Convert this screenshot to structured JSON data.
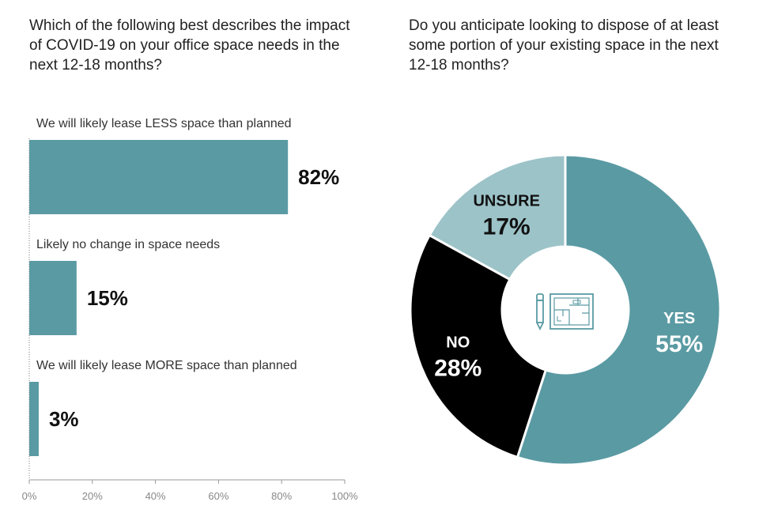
{
  "chart_data": [
    {
      "type": "bar",
      "orientation": "horizontal",
      "title": "Which of the following best describes the impact of COVID-19 on your office space needs in the next 12-18 months?",
      "categories": [
        "We will likely lease LESS space than planned",
        "Likely no change in space needs",
        "We will likely lease MORE space than planned"
      ],
      "values": [
        82,
        15,
        3
      ],
      "value_labels": [
        "82%",
        "15%",
        "3%"
      ],
      "xlim": [
        0,
        100
      ],
      "x_ticks": [
        "0%",
        "20%",
        "40%",
        "60%",
        "80%",
        "100%"
      ],
      "bar_color": "#5a9aa3",
      "grid": false
    },
    {
      "type": "pie",
      "donut": true,
      "title": "Do you anticipate looking to dispose of at least some portion of your existing space in the next 12-18 months?",
      "slices": [
        {
          "label": "YES",
          "value": 55,
          "value_label": "55%",
          "color": "#5a9aa3",
          "text_color": "#ffffff"
        },
        {
          "label": "NO",
          "value": 28,
          "value_label": "28%",
          "color": "#000000",
          "text_color": "#ffffff"
        },
        {
          "label": "UNSURE",
          "value": 17,
          "value_label": "17%",
          "color": "#9cc3c8",
          "text_color": "#111111"
        }
      ],
      "center_icon": "blueprint-pencil-icon",
      "icon_color": "#5a9aa3"
    }
  ]
}
